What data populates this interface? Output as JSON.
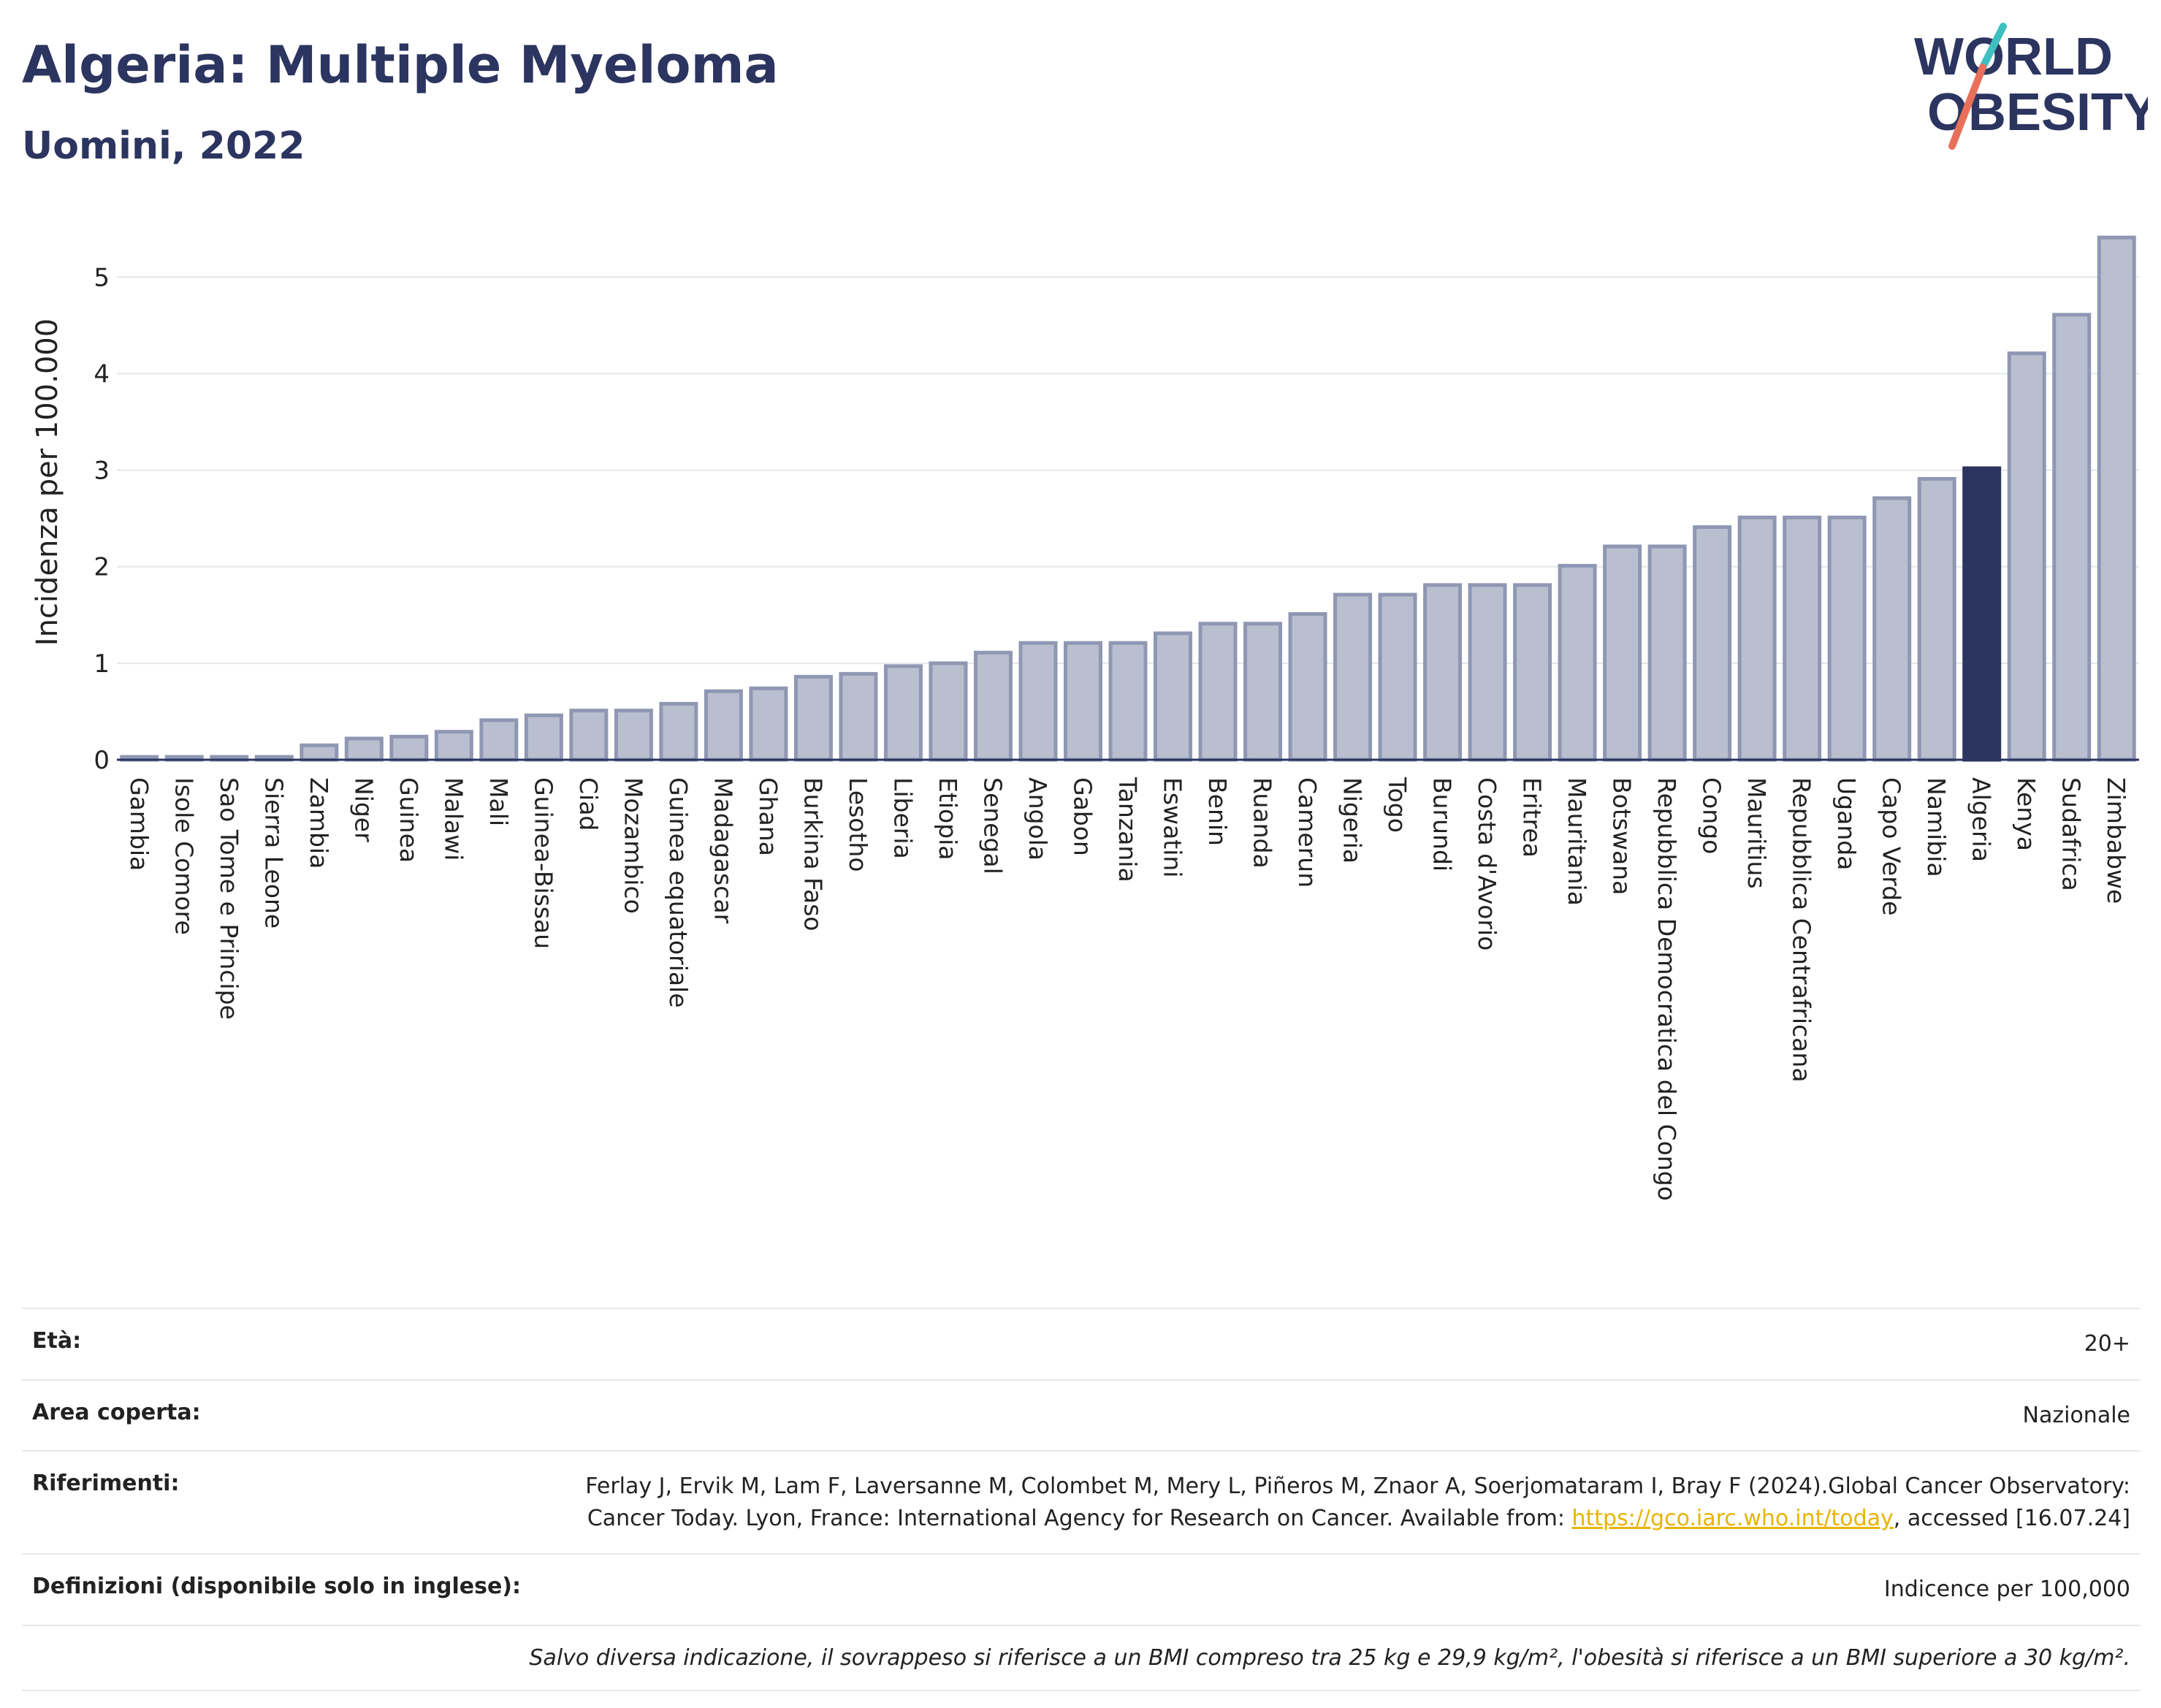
{
  "header": {
    "title": "Algeria: Multiple Myeloma",
    "subtitle": "Uomini, 2022"
  },
  "logo": {
    "line1": "WORLD",
    "line2": "OBESITY"
  },
  "colors": {
    "bar": "#b9bfcf",
    "bar_border": "#8f97b3",
    "highlight": "#2c3560",
    "title": "#2c3560",
    "link": "#e8b400"
  },
  "chart_data": {
    "type": "bar",
    "ylabel": "Incidenza per 100.000",
    "ylim": [
      0,
      5.6
    ],
    "yticks": [
      0,
      1,
      2,
      3,
      4,
      5
    ],
    "grid": true,
    "highlight": "Algeria",
    "categories": [
      "Gambia",
      "Isole Comore",
      "Sao Tome e Principe",
      "Sierra Leone",
      "Zambia",
      "Niger",
      "Guinea",
      "Malawi",
      "Mali",
      "Guinea-Bissau",
      "Ciad",
      "Mozambico",
      "Guinea equatoriale",
      "Madagascar",
      "Ghana",
      "Burkina Faso",
      "Lesotho",
      "Liberia",
      "Etiopia",
      "Senegal",
      "Angola",
      "Gabon",
      "Tanzania",
      "Eswatini",
      "Benin",
      "Ruanda",
      "Camerun",
      "Nigeria",
      "Togo",
      "Burundi",
      "Costa d'Avorio",
      "Eritrea",
      "Mauritania",
      "Botswana",
      "Repubblica Democratica del Congo",
      "Congo",
      "Mauritius",
      "Repubblica Centrafricana",
      "Uganda",
      "Capo Verde",
      "Namibia",
      "Algeria",
      "Kenya",
      "Sudafrica",
      "Zimbabwe"
    ],
    "values": [
      0.03,
      0.03,
      0.03,
      0.03,
      0.15,
      0.22,
      0.24,
      0.29,
      0.41,
      0.46,
      0.51,
      0.51,
      0.58,
      0.71,
      0.74,
      0.86,
      0.89,
      0.97,
      1.0,
      1.11,
      1.21,
      1.21,
      1.21,
      1.31,
      1.41,
      1.41,
      1.51,
      1.71,
      1.71,
      1.81,
      1.81,
      1.81,
      2.01,
      2.21,
      2.21,
      2.41,
      2.51,
      2.51,
      2.51,
      2.71,
      2.91,
      3.02,
      4.21,
      4.61,
      5.41
    ]
  },
  "info": {
    "age_label": "Età:",
    "age_value": "20+",
    "area_label": "Area coperta:",
    "area_value": "Nazionale",
    "refs_label": "Riferimenti:",
    "refs_text1": "Ferlay J, Ervik M, Lam F, Laversanne M, Colombet M, Mery L, Piñeros M, Znaor A, Soerjomataram I, Bray F (2024).Global Cancer Observatory: Cancer Today. Lyon, France: International Agency for Research on Cancer. Available from: ",
    "refs_link": "https://gco.iarc.who.int/today",
    "refs_text2": ", accessed [16.07.24]",
    "defs_label": "Definizioni (disponibile solo in inglese):",
    "defs_value": "Indicence per 100,000",
    "note": "Salvo diversa indicazione, il sovrappeso si riferisce a un BMI compreso tra 25 kg e 29,9 kg/m², l'obesità si riferisce a un BMI superiore a 30 kg/m²."
  }
}
